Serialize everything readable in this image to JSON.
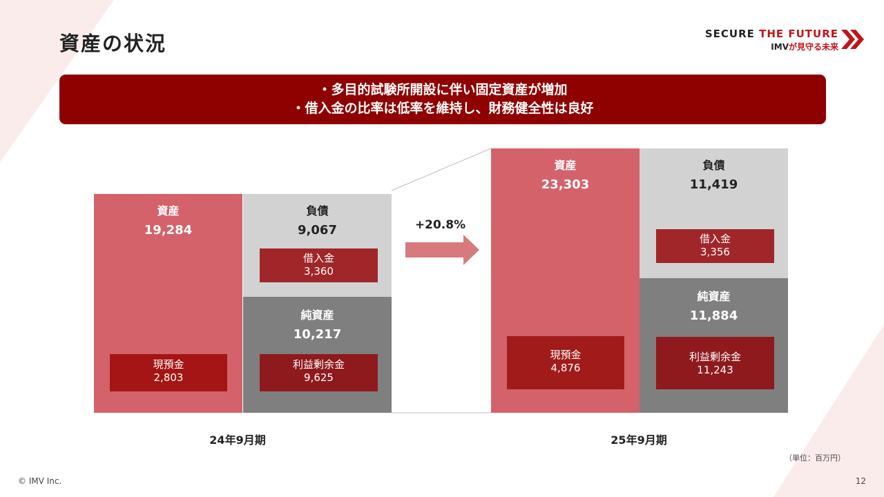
{
  "header": {
    "title": "資産の状況",
    "logo": {
      "line1_a": "SECURE",
      "line1_b": "THE FUTURE",
      "line2_a": "IMV",
      "line2_b": "が見守る未来"
    }
  },
  "banner": {
    "line1": "・多目的試験所開設に伴い固定資産が増加",
    "line2": "・借入金の比率は低率を維持し、財務健全性は良好"
  },
  "chart_data": {
    "type": "bar",
    "categories": [
      "24年9月期",
      "25年9月期"
    ],
    "unit": "（単位：百万円）",
    "growth_label": "+20.8%",
    "periods": [
      {
        "label": "24年9月期",
        "assets": {
          "label": "資産",
          "value": 19284,
          "display": "19,284",
          "cash": {
            "label": "現預金",
            "value": 2803,
            "display": "2,803"
          }
        },
        "liabilities": {
          "label": "負債",
          "value": 9067,
          "display": "9,067",
          "borrowings": {
            "label": "借入金",
            "value": 3360,
            "display": "3,360"
          }
        },
        "net_assets": {
          "label": "純資産",
          "value": 10217,
          "display": "10,217",
          "retained_earnings": {
            "label": "利益剰余金",
            "value": 9625,
            "display": "9,625"
          }
        }
      },
      {
        "label": "25年9月期",
        "assets": {
          "label": "資産",
          "value": 23303,
          "display": "23,303",
          "cash": {
            "label": "現預金",
            "value": 4876,
            "display": "4,876"
          }
        },
        "liabilities": {
          "label": "負債",
          "value": 11419,
          "display": "11,419",
          "borrowings": {
            "label": "借入金",
            "value": 3356,
            "display": "3,356"
          }
        },
        "net_assets": {
          "label": "純資産",
          "value": 11884,
          "display": "11,884",
          "retained_earnings": {
            "label": "利益剰余金",
            "value": 11243,
            "display": "11,243"
          }
        }
      }
    ],
    "colors": {
      "assets": "#d4626b",
      "liabilities": "#d2d2d2",
      "net_assets": "#7f7f7f",
      "sub_box_dark": "#a11b1b",
      "arrow": "#d67a7e"
    }
  },
  "footer": {
    "copyright": "© IMV Inc.",
    "page_number": "12"
  }
}
